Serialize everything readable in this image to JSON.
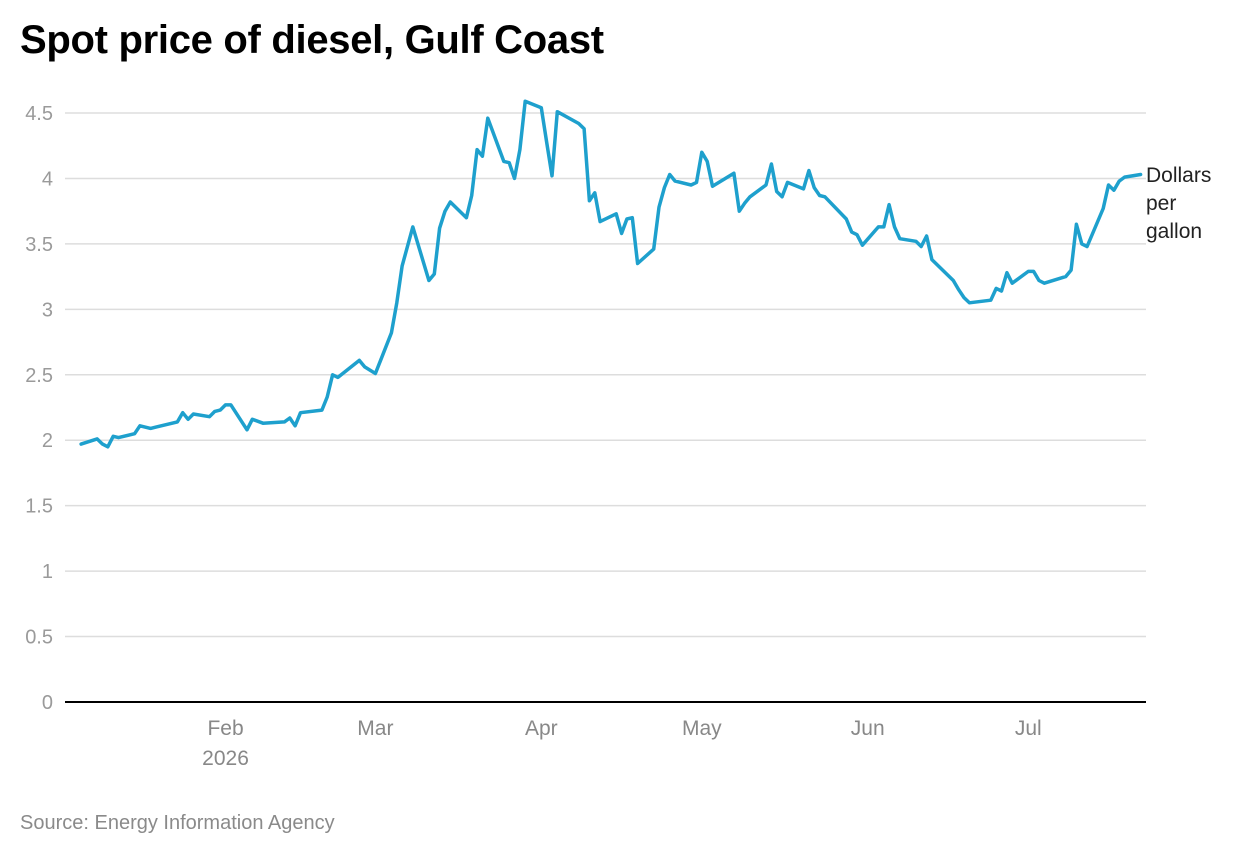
{
  "title": "Spot price of diesel, Gulf Coast",
  "source": "Source: Energy Information Agency",
  "colors": {
    "line": "#1ea0cd",
    "grid": "#dddddd",
    "axis": "#000000",
    "tick_text": "#9a9a9a"
  },
  "chart_data": {
    "type": "line",
    "title": "Spot price of diesel, Gulf Coast",
    "ylabel": "Dollars per gallon",
    "ylabel_lines": [
      "Dollars",
      "per",
      "gallon"
    ],
    "xlabel": "",
    "ylim": [
      0,
      4.5
    ],
    "yticks": [
      "0",
      "0.5",
      "1",
      "1.5",
      "2",
      "2.5",
      "3",
      "3.5",
      "4",
      "4.5"
    ],
    "xlim": [
      "2026-01-02",
      "2026-07-23"
    ],
    "xticks": [
      {
        "date": "2026-02-01",
        "label": "Feb",
        "sublabel": "2026"
      },
      {
        "date": "2026-03-01",
        "label": "Mar",
        "sublabel": ""
      },
      {
        "date": "2026-04-01",
        "label": "Apr",
        "sublabel": ""
      },
      {
        "date": "2026-05-01",
        "label": "May",
        "sublabel": ""
      },
      {
        "date": "2026-06-01",
        "label": "Jun",
        "sublabel": ""
      },
      {
        "date": "2026-07-01",
        "label": "Jul",
        "sublabel": ""
      }
    ],
    "grid": true,
    "series": [
      {
        "name": "",
        "points": [
          [
            "2026-01-05",
            1.97
          ],
          [
            "2026-01-08",
            2.01
          ],
          [
            "2026-01-09",
            1.97
          ],
          [
            "2026-01-10",
            1.95
          ],
          [
            "2026-01-11",
            2.03
          ],
          [
            "2026-01-12",
            2.02
          ],
          [
            "2026-01-15",
            2.05
          ],
          [
            "2026-01-16",
            2.11
          ],
          [
            "2026-01-18",
            2.09
          ],
          [
            "2026-01-19",
            2.1
          ],
          [
            "2026-01-23",
            2.14
          ],
          [
            "2026-01-24",
            2.21
          ],
          [
            "2026-01-25",
            2.16
          ],
          [
            "2026-01-26",
            2.2
          ],
          [
            "2026-01-29",
            2.18
          ],
          [
            "2026-01-30",
            2.22
          ],
          [
            "2026-01-31",
            2.23
          ],
          [
            "2026-02-01",
            2.27
          ],
          [
            "2026-02-02",
            2.27
          ],
          [
            "2026-02-05",
            2.08
          ],
          [
            "2026-02-06",
            2.16
          ],
          [
            "2026-02-08",
            2.13
          ],
          [
            "2026-02-12",
            2.14
          ],
          [
            "2026-02-13",
            2.17
          ],
          [
            "2026-02-14",
            2.11
          ],
          [
            "2026-02-15",
            2.21
          ],
          [
            "2026-02-19",
            2.23
          ],
          [
            "2026-02-20",
            2.33
          ],
          [
            "2026-02-21",
            2.5
          ],
          [
            "2026-02-22",
            2.48
          ],
          [
            "2026-02-26",
            2.61
          ],
          [
            "2026-02-27",
            2.56
          ],
          [
            "2026-03-01",
            2.51
          ],
          [
            "2026-03-04",
            2.82
          ],
          [
            "2026-03-05",
            3.05
          ],
          [
            "2026-03-06",
            3.33
          ],
          [
            "2026-03-08",
            3.63
          ],
          [
            "2026-03-11",
            3.22
          ],
          [
            "2026-03-12",
            3.27
          ],
          [
            "2026-03-13",
            3.62
          ],
          [
            "2026-03-14",
            3.75
          ],
          [
            "2026-03-15",
            3.82
          ],
          [
            "2026-03-18",
            3.7
          ],
          [
            "2026-03-19",
            3.87
          ],
          [
            "2026-03-20",
            4.22
          ],
          [
            "2026-03-21",
            4.17
          ],
          [
            "2026-03-22",
            4.46
          ],
          [
            "2026-03-25",
            4.13
          ],
          [
            "2026-03-26",
            4.12
          ],
          [
            "2026-03-27",
            4.0
          ],
          [
            "2026-03-28",
            4.22
          ],
          [
            "2026-03-29",
            4.59
          ],
          [
            "2026-04-01",
            4.54
          ],
          [
            "2026-04-02",
            4.28
          ],
          [
            "2026-04-03",
            4.02
          ],
          [
            "2026-04-04",
            4.51
          ],
          [
            "2026-04-08",
            4.42
          ],
          [
            "2026-04-09",
            4.38
          ],
          [
            "2026-04-10",
            3.83
          ],
          [
            "2026-04-11",
            3.89
          ],
          [
            "2026-04-12",
            3.67
          ],
          [
            "2026-04-15",
            3.73
          ],
          [
            "2026-04-16",
            3.58
          ],
          [
            "2026-04-17",
            3.69
          ],
          [
            "2026-04-18",
            3.7
          ],
          [
            "2026-04-19",
            3.35
          ],
          [
            "2026-04-22",
            3.46
          ],
          [
            "2026-04-23",
            3.78
          ],
          [
            "2026-04-24",
            3.93
          ],
          [
            "2026-04-25",
            4.03
          ],
          [
            "2026-04-26",
            3.98
          ],
          [
            "2026-04-29",
            3.95
          ],
          [
            "2026-04-30",
            3.97
          ],
          [
            "2026-05-01",
            4.2
          ],
          [
            "2026-05-02",
            4.13
          ],
          [
            "2026-05-03",
            3.94
          ],
          [
            "2026-05-07",
            4.04
          ],
          [
            "2026-05-08",
            3.75
          ],
          [
            "2026-05-09",
            3.81
          ],
          [
            "2026-05-10",
            3.86
          ],
          [
            "2026-05-13",
            3.95
          ],
          [
            "2026-05-14",
            4.11
          ],
          [
            "2026-05-15",
            3.9
          ],
          [
            "2026-05-16",
            3.86
          ],
          [
            "2026-05-17",
            3.97
          ],
          [
            "2026-05-20",
            3.92
          ],
          [
            "2026-05-21",
            4.06
          ],
          [
            "2026-05-22",
            3.93
          ],
          [
            "2026-05-23",
            3.87
          ],
          [
            "2026-05-24",
            3.86
          ],
          [
            "2026-05-28",
            3.69
          ],
          [
            "2026-05-29",
            3.59
          ],
          [
            "2026-05-30",
            3.57
          ],
          [
            "2026-05-31",
            3.49
          ],
          [
            "2026-06-03",
            3.63
          ],
          [
            "2026-06-04",
            3.63
          ],
          [
            "2026-06-05",
            3.8
          ],
          [
            "2026-06-06",
            3.63
          ],
          [
            "2026-06-07",
            3.54
          ],
          [
            "2026-06-10",
            3.52
          ],
          [
            "2026-06-11",
            3.48
          ],
          [
            "2026-06-12",
            3.56
          ],
          [
            "2026-06-13",
            3.38
          ],
          [
            "2026-06-17",
            3.22
          ],
          [
            "2026-06-18",
            3.15
          ],
          [
            "2026-06-19",
            3.09
          ],
          [
            "2026-06-20",
            3.05
          ],
          [
            "2026-06-24",
            3.07
          ],
          [
            "2026-06-25",
            3.16
          ],
          [
            "2026-06-26",
            3.14
          ],
          [
            "2026-06-27",
            3.28
          ],
          [
            "2026-06-28",
            3.2
          ],
          [
            "2026-07-01",
            3.29
          ],
          [
            "2026-07-02",
            3.29
          ],
          [
            "2026-07-03",
            3.22
          ],
          [
            "2026-07-04",
            3.2
          ],
          [
            "2026-07-08",
            3.25
          ],
          [
            "2026-07-09",
            3.3
          ],
          [
            "2026-07-10",
            3.65
          ],
          [
            "2026-07-11",
            3.5
          ],
          [
            "2026-07-12",
            3.48
          ],
          [
            "2026-07-15",
            3.77
          ],
          [
            "2026-07-16",
            3.95
          ],
          [
            "2026-07-17",
            3.91
          ],
          [
            "2026-07-18",
            3.98
          ],
          [
            "2026-07-19",
            4.01
          ],
          [
            "2026-07-22",
            4.03
          ]
        ]
      }
    ]
  }
}
